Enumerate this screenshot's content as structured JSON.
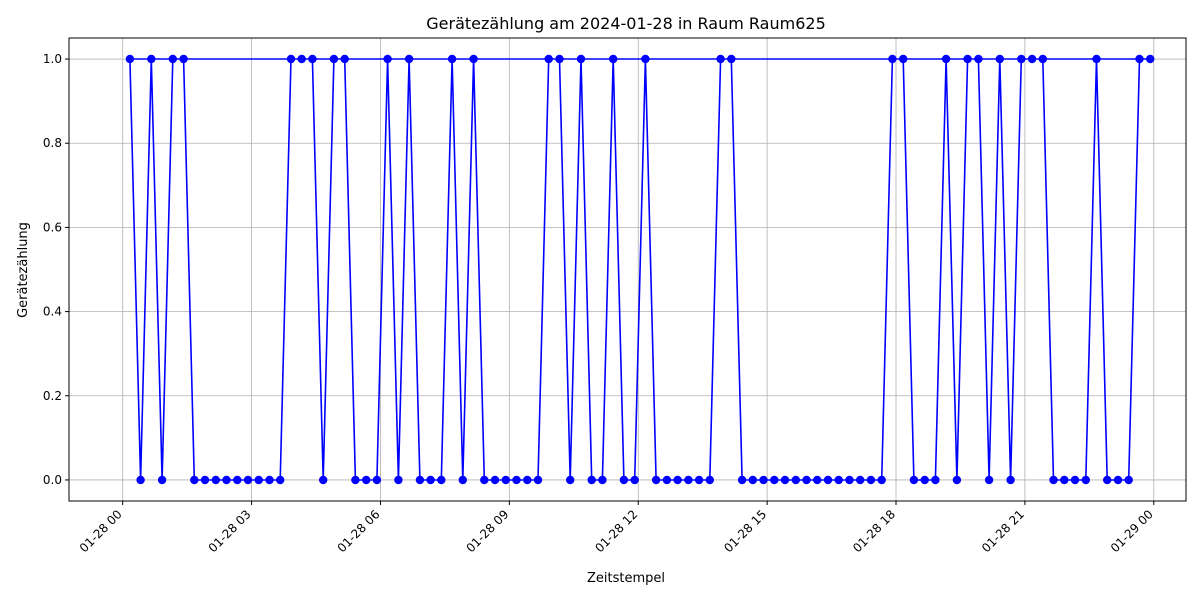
{
  "chart_data": {
    "type": "line",
    "title": "Gerätezählung am 2024-01-28 in Raum Raum625",
    "xlabel": "Zeitstempel",
    "ylabel": "Gerätezählung",
    "grid": true,
    "xlim": [
      "2024-01-27 22:45",
      "2024-01-29 00:45"
    ],
    "ylim": [
      -0.05,
      1.05
    ],
    "x_ticks": [
      "01-28 00",
      "01-28 03",
      "01-28 06",
      "01-28 09",
      "01-28 12",
      "01-28 15",
      "01-28 18",
      "01-28 21",
      "01-29 00"
    ],
    "y_ticks": [
      "0.0",
      "0.2",
      "0.4",
      "0.6",
      "0.8",
      "1.0"
    ],
    "series": [
      {
        "color": "#0000ff",
        "marker": "circle",
        "x": [
          "2024-01-28 00:10",
          "2024-01-28 00:25",
          "2024-01-28 00:40",
          "2024-01-28 00:55",
          "2024-01-28 01:10",
          "2024-01-28 01:25",
          "2024-01-28 01:40",
          "2024-01-28 01:55",
          "2024-01-28 02:10",
          "2024-01-28 02:25",
          "2024-01-28 02:40",
          "2024-01-28 02:55",
          "2024-01-28 03:10",
          "2024-01-28 03:25",
          "2024-01-28 03:40",
          "2024-01-28 03:55",
          "2024-01-28 04:10",
          "2024-01-28 04:25",
          "2024-01-28 04:40",
          "2024-01-28 04:55",
          "2024-01-28 05:10",
          "2024-01-28 05:25",
          "2024-01-28 05:40",
          "2024-01-28 05:55",
          "2024-01-28 06:10",
          "2024-01-28 06:25",
          "2024-01-28 06:40",
          "2024-01-28 06:55",
          "2024-01-28 07:10",
          "2024-01-28 07:25",
          "2024-01-28 07:40",
          "2024-01-28 07:55",
          "2024-01-28 08:10",
          "2024-01-28 08:25",
          "2024-01-28 08:40",
          "2024-01-28 08:55",
          "2024-01-28 09:10",
          "2024-01-28 09:25",
          "2024-01-28 09:40",
          "2024-01-28 09:55",
          "2024-01-28 10:10",
          "2024-01-28 10:25",
          "2024-01-28 10:40",
          "2024-01-28 10:55",
          "2024-01-28 11:10",
          "2024-01-28 11:25",
          "2024-01-28 11:40",
          "2024-01-28 11:55",
          "2024-01-28 12:10",
          "2024-01-28 12:25",
          "2024-01-28 12:40",
          "2024-01-28 12:55",
          "2024-01-28 13:10",
          "2024-01-28 13:25",
          "2024-01-28 13:40",
          "2024-01-28 13:55",
          "2024-01-28 14:10",
          "2024-01-28 14:25",
          "2024-01-28 14:40",
          "2024-01-28 14:55",
          "2024-01-28 15:10",
          "2024-01-28 15:25",
          "2024-01-28 15:40",
          "2024-01-28 15:55",
          "2024-01-28 16:10",
          "2024-01-28 16:25",
          "2024-01-28 16:40",
          "2024-01-28 16:55",
          "2024-01-28 17:10",
          "2024-01-28 17:25",
          "2024-01-28 17:40",
          "2024-01-28 17:55",
          "2024-01-28 18:10",
          "2024-01-28 18:25",
          "2024-01-28 18:40",
          "2024-01-28 18:55",
          "2024-01-28 19:10",
          "2024-01-28 19:25",
          "2024-01-28 19:40",
          "2024-01-28 19:55",
          "2024-01-28 20:10",
          "2024-01-28 20:25",
          "2024-01-28 20:40",
          "2024-01-28 20:55",
          "2024-01-28 21:10",
          "2024-01-28 21:25",
          "2024-01-28 21:40",
          "2024-01-28 21:55",
          "2024-01-28 22:10",
          "2024-01-28 22:25",
          "2024-01-28 22:40",
          "2024-01-28 22:55",
          "2024-01-28 23:10",
          "2024-01-28 23:25",
          "2024-01-28 23:40",
          "2024-01-28 23:55"
        ],
        "y": [
          1,
          0,
          1,
          0,
          1,
          1,
          0,
          0,
          0,
          0,
          0,
          0,
          0,
          0,
          0,
          1,
          1,
          1,
          0,
          1,
          1,
          0,
          0,
          0,
          1,
          0,
          1,
          0,
          0,
          0,
          1,
          0,
          1,
          0,
          0,
          0,
          0,
          0,
          0,
          1,
          1,
          0,
          1,
          0,
          0,
          1,
          0,
          0,
          1,
          0,
          0,
          0,
          0,
          0,
          0,
          1,
          1,
          0,
          0,
          0,
          0,
          0,
          0,
          0,
          0,
          0,
          0,
          0,
          0,
          0,
          0,
          1,
          1,
          0,
          0,
          0,
          1,
          0,
          1,
          1,
          0,
          1,
          0,
          1,
          1,
          1,
          0,
          0,
          0,
          0,
          1,
          0,
          0,
          0,
          1,
          1
        ]
      }
    ]
  }
}
